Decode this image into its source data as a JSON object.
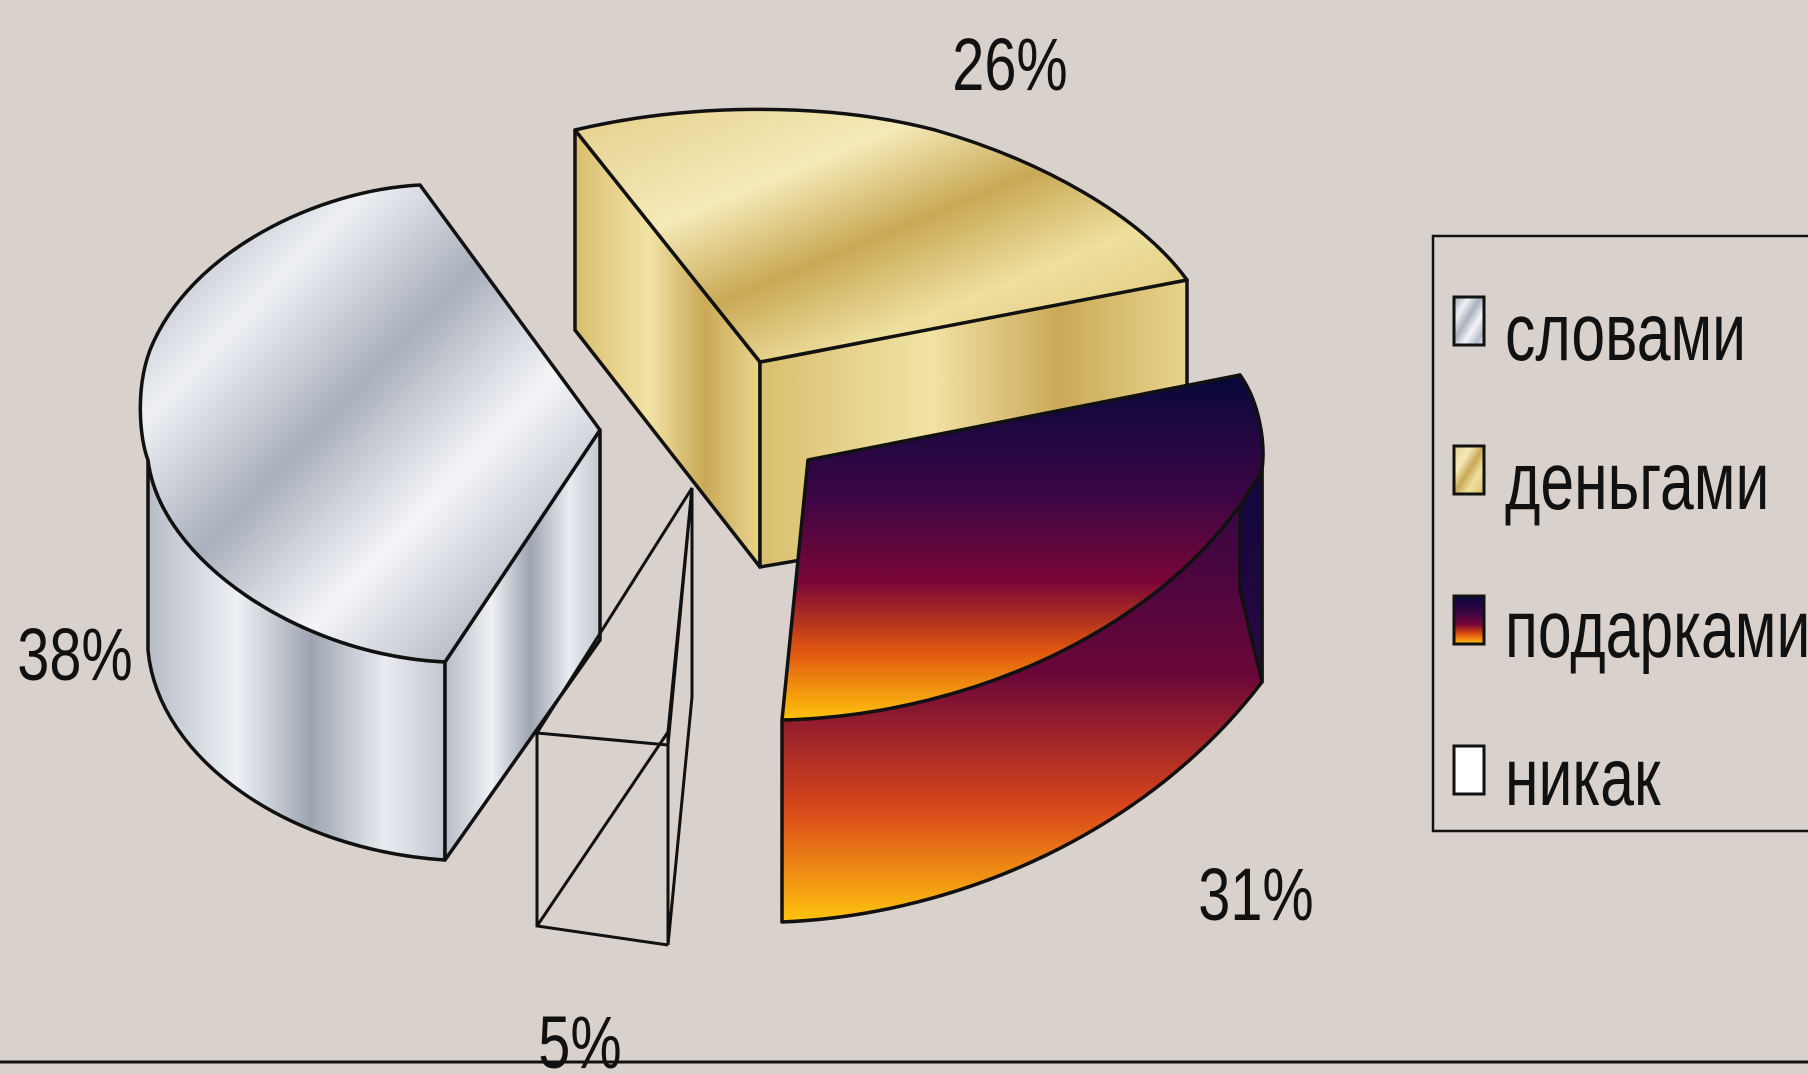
{
  "chart_data": {
    "type": "pie",
    "subtype": "3d-exploded",
    "categories": [
      "словами",
      "деньгами",
      "подарками",
      "никак"
    ],
    "values": [
      38,
      26,
      31,
      5
    ],
    "data_labels": [
      "38%",
      "26%",
      "31%",
      "5%"
    ],
    "legend": {
      "placement": "right",
      "entries": [
        "словами",
        "деньгами",
        "подарками",
        "никак"
      ]
    },
    "colors": [
      "#c7cdd6",
      "#dcc273",
      "#5a0740",
      "#ffffff"
    ]
  }
}
